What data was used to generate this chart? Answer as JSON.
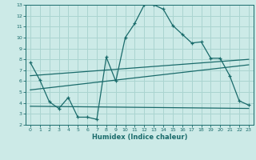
{
  "xlabel": "Humidex (Indice chaleur)",
  "bg_color": "#cceae7",
  "line_color": "#1a6b6b",
  "grid_color": "#aad4d0",
  "xlim": [
    -0.5,
    23.5
  ],
  "ylim": [
    2,
    13
  ],
  "xticks": [
    0,
    1,
    2,
    3,
    4,
    5,
    6,
    7,
    8,
    9,
    10,
    11,
    12,
    13,
    14,
    15,
    16,
    17,
    18,
    19,
    20,
    21,
    22,
    23
  ],
  "yticks": [
    2,
    3,
    4,
    5,
    6,
    7,
    8,
    9,
    10,
    11,
    12,
    13
  ],
  "curve1_x": [
    0,
    1,
    2,
    3,
    4,
    5,
    6,
    7,
    8,
    9,
    10,
    11,
    12,
    13,
    14,
    15,
    16,
    17,
    18,
    19,
    20,
    21,
    22,
    23
  ],
  "curve1_y": [
    7.7,
    6.1,
    4.1,
    3.5,
    4.5,
    2.7,
    2.7,
    2.5,
    8.2,
    6.0,
    10.0,
    11.3,
    13.0,
    13.0,
    12.6,
    11.1,
    10.3,
    9.5,
    9.6,
    8.1,
    8.1,
    6.5,
    4.2,
    3.8
  ],
  "line1_x": [
    0,
    23
  ],
  "line1_y": [
    6.5,
    8.0
  ],
  "line2_x": [
    0,
    23
  ],
  "line2_y": [
    5.2,
    7.5
  ],
  "line3_x": [
    0,
    23
  ],
  "line3_y": [
    3.7,
    3.5
  ]
}
